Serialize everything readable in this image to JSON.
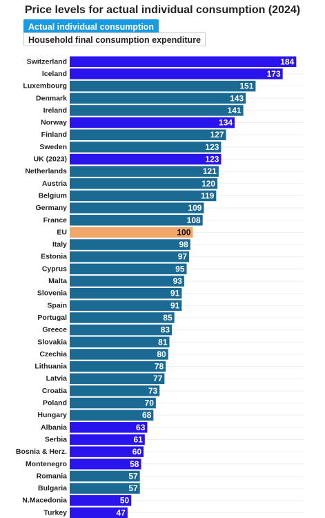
{
  "tabs": {
    "active_label": "Actual individual consumption",
    "inactive_label": "Household final consumption expenditure"
  },
  "colors": {
    "default_bar": "#1b6a94",
    "highlight_bar": "#2a14ee",
    "eu_bar": "#f2a76a",
    "label_light": "#ffffff",
    "label_dark": "#111111"
  },
  "chart_data": {
    "type": "bar",
    "orientation": "horizontal",
    "title": "Price levels for actual individual consumption (2024)",
    "xlim": [
      0,
      190
    ],
    "categories": [
      "Switzerland",
      "Iceland",
      "Luxembourg",
      "Denmark",
      "Ireland",
      "Norway",
      "Finland",
      "Sweden",
      "UK (2023)",
      "Netherlands",
      "Austria",
      "Belgium",
      "Germany",
      "France",
      "EU",
      "Italy",
      "Estonia",
      "Cyprus",
      "Malta",
      "Slovenia",
      "Spain",
      "Portugal",
      "Greece",
      "Slovakia",
      "Czechia",
      "Lithuania",
      "Latvia",
      "Croatia",
      "Poland",
      "Hungary",
      "Albania",
      "Serbia",
      "Bosnia & Herz.",
      "Montenegro",
      "Romania",
      "Bulgaria",
      "N.Macedonia",
      "Turkey"
    ],
    "values": [
      184,
      173,
      151,
      143,
      141,
      134,
      127,
      123,
      123,
      121,
      120,
      119,
      109,
      108,
      100,
      98,
      97,
      95,
      93,
      91,
      91,
      85,
      83,
      81,
      80,
      78,
      77,
      73,
      70,
      68,
      63,
      61,
      60,
      58,
      57,
      57,
      50,
      47
    ],
    "bar_colors": [
      "highlight",
      "highlight",
      "default",
      "default",
      "default",
      "highlight",
      "default",
      "default",
      "highlight",
      "default",
      "default",
      "default",
      "default",
      "default",
      "eu",
      "default",
      "default",
      "default",
      "default",
      "default",
      "default",
      "default",
      "default",
      "default",
      "default",
      "default",
      "default",
      "default",
      "default",
      "default",
      "highlight",
      "highlight",
      "highlight",
      "highlight",
      "default",
      "default",
      "highlight",
      "highlight"
    ]
  }
}
